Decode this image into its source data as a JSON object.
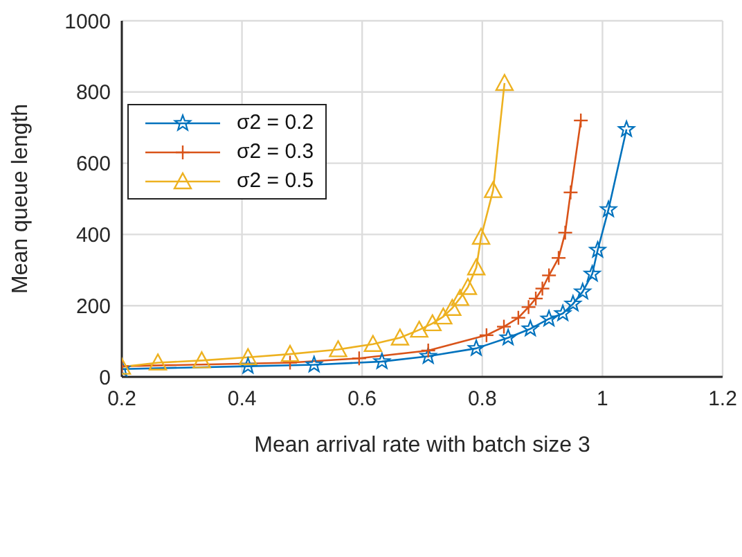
{
  "chart_data": {
    "type": "line",
    "xlabel": "Mean arrival rate with batch size 3",
    "ylabel": "Mean queue length",
    "xlim": [
      0.2,
      1.2
    ],
    "xticks": [
      0.2,
      0.4,
      0.6,
      0.8,
      1,
      1.2
    ],
    "ylim": [
      0,
      1000
    ],
    "yticks": [
      0,
      200,
      400,
      600,
      800,
      1000
    ],
    "grid": true,
    "legend": "top left",
    "line_style": "solid",
    "series": [
      {
        "name": "σ2 = 0.2",
        "color": "#0072bd",
        "marker": "star",
        "x": [
          0.2,
          0.41,
          0.52,
          0.633,
          0.71,
          0.79,
          0.843,
          0.88,
          0.911,
          0.934,
          0.951,
          0.967,
          0.983,
          0.992,
          1.01,
          1.04
        ],
        "values": [
          22,
          30,
          34,
          43,
          58,
          80,
          110,
          135,
          163,
          178,
          205,
          239,
          289,
          356,
          470,
          695
        ]
      },
      {
        "name": "σ2 = 0.3",
        "color": "#d95319",
        "marker": "cross",
        "x": [
          0.2,
          0.48,
          0.595,
          0.71,
          0.807,
          0.836,
          0.86,
          0.877,
          0.889,
          0.9,
          0.911,
          0.927,
          0.938,
          0.947,
          0.964
        ],
        "values": [
          30,
          40,
          52,
          74,
          117,
          141,
          166,
          196,
          220,
          248,
          285,
          334,
          405,
          518,
          720
        ]
      },
      {
        "name": "σ2 = 0.5",
        "color": "#edb120",
        "marker": "triangle",
        "x": [
          0.2,
          0.26,
          0.333,
          0.41,
          0.48,
          0.56,
          0.618,
          0.663,
          0.695,
          0.717,
          0.735,
          0.75,
          0.763,
          0.776,
          0.79,
          0.798,
          0.818,
          0.837
        ],
        "values": [
          28,
          40,
          46,
          55,
          64,
          77,
          92,
          110,
          132,
          150,
          169,
          193,
          221,
          252,
          307,
          393,
          524,
          825
        ]
      }
    ]
  }
}
